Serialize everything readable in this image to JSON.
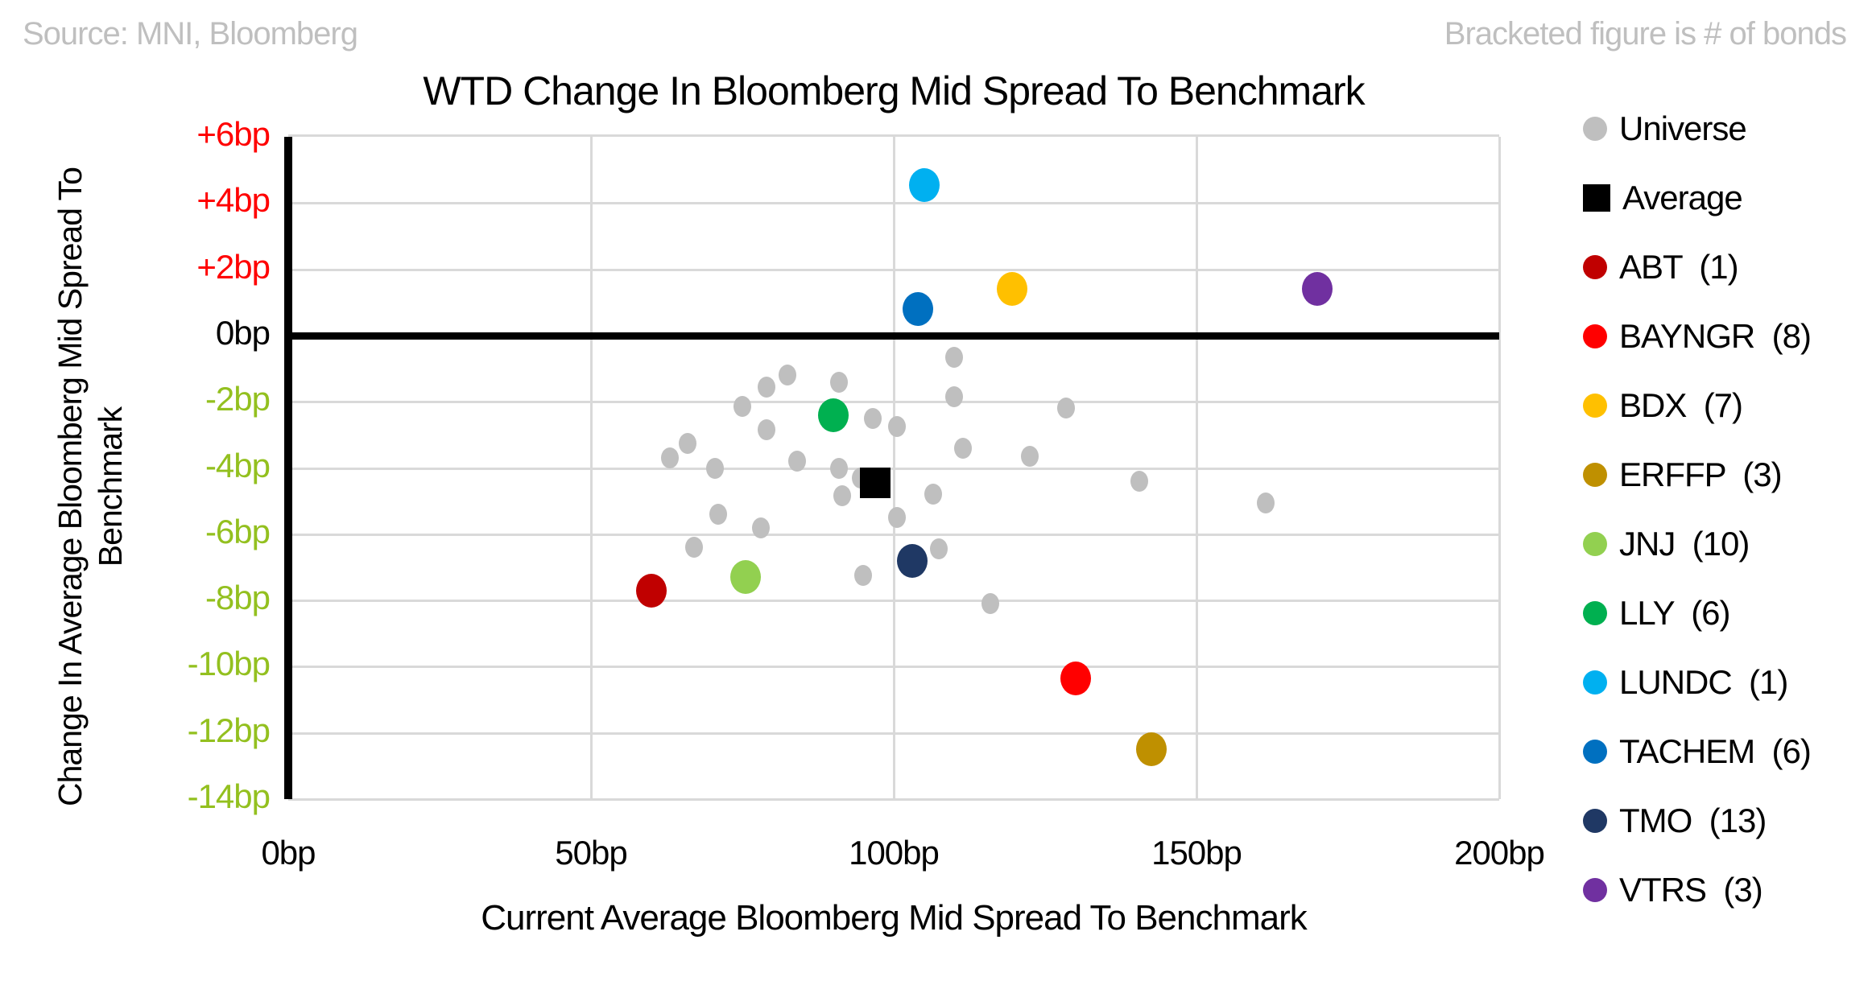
{
  "header": {
    "source": "Source: MNI, Bloomberg",
    "note": "Bracketed figure is # of bonds"
  },
  "chart_data": {
    "type": "scatter",
    "title": "WTD Change In Bloomberg Mid Spread To Benchmark",
    "xlabel": "Current Average Bloomberg Mid Spread To Benchmark",
    "ylabel": "Change In Average Bloomberg Mid Spread To Benchmark",
    "ylabel_lines": [
      "Change In Average Bloomberg Mid Spread To",
      "Benchmark"
    ],
    "xlim": [
      0,
      200
    ],
    "ylim": [
      -14,
      6
    ],
    "grid": true,
    "legend_position": "right",
    "zero_line_y": 0,
    "x_ticks": [
      {
        "value": 0,
        "label": "0bp",
        "color": "#000000"
      },
      {
        "value": 50,
        "label": "50bp",
        "color": "#000000"
      },
      {
        "value": 100,
        "label": "100bp",
        "color": "#000000"
      },
      {
        "value": 150,
        "label": "150bp",
        "color": "#000000"
      },
      {
        "value": 200,
        "label": "200bp",
        "color": "#000000"
      }
    ],
    "y_ticks": [
      {
        "value": 6,
        "label": "+6bp",
        "color": "#ff0000"
      },
      {
        "value": 4,
        "label": "+4bp",
        "color": "#ff0000"
      },
      {
        "value": 2,
        "label": "+2bp",
        "color": "#ff0000"
      },
      {
        "value": 0,
        "label": "0bp",
        "color": "#000000"
      },
      {
        "value": -2,
        "label": "-2bp",
        "color": "#93c01f"
      },
      {
        "value": -4,
        "label": "-4bp",
        "color": "#93c01f"
      },
      {
        "value": -6,
        "label": "-6bp",
        "color": "#93c01f"
      },
      {
        "value": -8,
        "label": "-8bp",
        "color": "#93c01f"
      },
      {
        "value": -10,
        "label": "-10bp",
        "color": "#93c01f"
      },
      {
        "value": -12,
        "label": "-12bp",
        "color": "#93c01f"
      },
      {
        "value": -14,
        "label": "-14bp",
        "color": "#93c01f"
      }
    ],
    "series": [
      {
        "name": "Universe",
        "count": null,
        "color": "#bfbfbf",
        "marker": "circle",
        "marker_size": 22,
        "points": [
          [
            79,
            -1.55
          ],
          [
            82.5,
            -1.2
          ],
          [
            91,
            -1.4
          ],
          [
            110,
            -0.65
          ],
          [
            110,
            -1.85
          ],
          [
            75,
            -2.15
          ],
          [
            79,
            -2.85
          ],
          [
            96.5,
            -2.5
          ],
          [
            100.5,
            -2.75
          ],
          [
            128.5,
            -2.2
          ],
          [
            66,
            -3.25
          ],
          [
            63,
            -3.7
          ],
          [
            84,
            -3.8
          ],
          [
            70.5,
            -4
          ],
          [
            91,
            -4
          ],
          [
            94.5,
            -4.3
          ],
          [
            111.5,
            -3.4
          ],
          [
            122.5,
            -3.65
          ],
          [
            140.5,
            -4.4
          ],
          [
            91.5,
            -4.85
          ],
          [
            106.5,
            -4.8
          ],
          [
            161.5,
            -5.05
          ],
          [
            71,
            -5.4
          ],
          [
            78,
            -5.8
          ],
          [
            100.5,
            -5.5
          ],
          [
            67,
            -6.4
          ],
          [
            107.5,
            -6.45
          ],
          [
            95,
            -7.25
          ],
          [
            116,
            -8.1
          ]
        ]
      },
      {
        "name": "Average",
        "count": null,
        "color": "#000000",
        "marker": "square",
        "marker_size": 38,
        "points": [
          [
            97,
            -4.45
          ]
        ]
      },
      {
        "name": "ABT",
        "count": 1,
        "color": "#c00000",
        "marker": "circle",
        "marker_size": 38,
        "points": [
          [
            60,
            -7.7
          ]
        ]
      },
      {
        "name": "BAYNGR",
        "count": 8,
        "color": "#ff0000",
        "marker": "circle",
        "marker_size": 38,
        "points": [
          [
            130,
            -10.35
          ]
        ]
      },
      {
        "name": "BDX",
        "count": 7,
        "color": "#ffc000",
        "marker": "circle",
        "marker_size": 38,
        "points": [
          [
            119.5,
            1.4
          ]
        ]
      },
      {
        "name": "ERFFP",
        "count": 3,
        "color": "#bf9000",
        "marker": "circle",
        "marker_size": 38,
        "points": [
          [
            142.5,
            -12.5
          ]
        ]
      },
      {
        "name": "JNJ",
        "count": 10,
        "color": "#92d050",
        "marker": "circle",
        "marker_size": 38,
        "points": [
          [
            75.5,
            -7.3
          ]
        ]
      },
      {
        "name": "LLY",
        "count": 6,
        "color": "#00b050",
        "marker": "circle",
        "marker_size": 38,
        "points": [
          [
            90,
            -2.4
          ]
        ]
      },
      {
        "name": "LUNDC",
        "count": 1,
        "color": "#00b0f0",
        "marker": "circle",
        "marker_size": 38,
        "points": [
          [
            105,
            4.55
          ]
        ]
      },
      {
        "name": "TACHEM",
        "count": 6,
        "color": "#0070c0",
        "marker": "circle",
        "marker_size": 38,
        "points": [
          [
            104,
            0.8
          ]
        ]
      },
      {
        "name": "TMO",
        "count": 13,
        "color": "#1f3864",
        "marker": "circle",
        "marker_size": 38,
        "points": [
          [
            103,
            -6.8
          ]
        ]
      },
      {
        "name": "VTRS",
        "count": 3,
        "color": "#7030a0",
        "marker": "circle",
        "marker_size": 38,
        "points": [
          [
            170,
            1.4
          ]
        ]
      }
    ]
  },
  "colors": {
    "grid": "#d9d9d9",
    "axis": "#000000",
    "note_text": "#bfbfbf",
    "positive_tick": "#ff0000",
    "negative_tick": "#93c01f"
  }
}
